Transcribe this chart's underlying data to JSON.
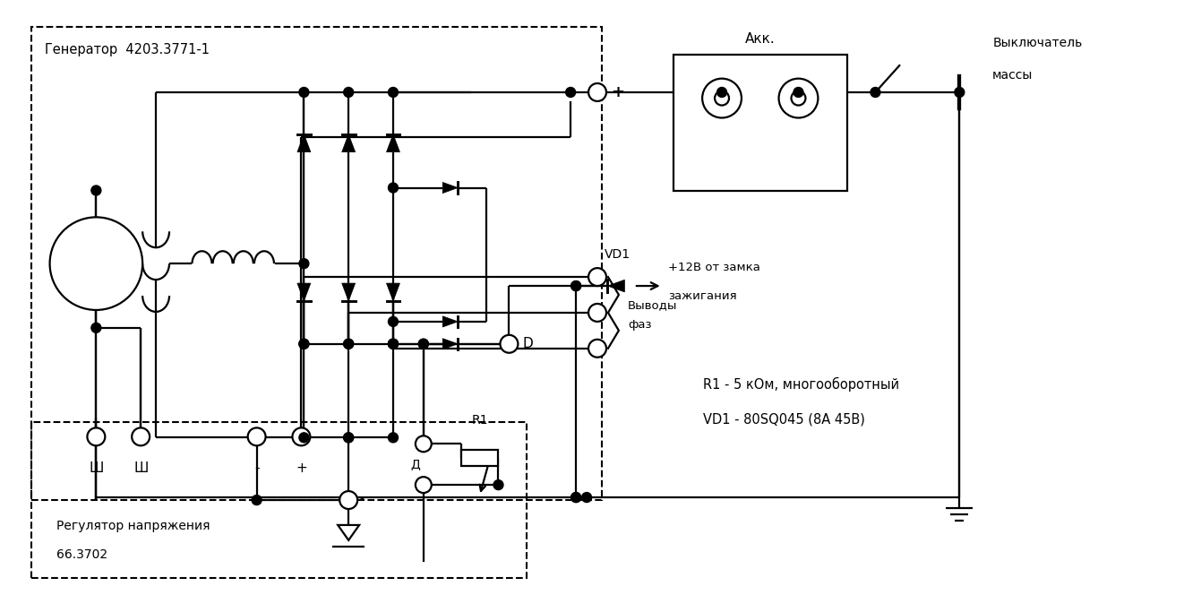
{
  "bg_color": "#ffffff",
  "lc": "#000000",
  "lw": 1.6,
  "generator_label": "Генератор  4203.3771-1",
  "regulator_label1": "Регулятор напряжения",
  "regulator_label2": "66.3702",
  "akk_label": "Акк.",
  "switch_label1": "Выключатель",
  "switch_label2": "массы",
  "phase_label1": "Выводы",
  "phase_label2": "фаз",
  "vd1_label": "VD1",
  "r1_label": "R1",
  "d_label": "Д",
  "d_terminal_label": "D",
  "r1_desc": "R1 - 5 кОм, многооборотный",
  "vd1_desc": "VD1 - 80SQ045 (8А 45В)",
  "plus12_line1": "+12В от замка",
  "plus12_line2": "зажигания",
  "terminal_labels": [
    "Ш",
    "Ш",
    "-",
    "+"
  ],
  "minus_sym": "-"
}
